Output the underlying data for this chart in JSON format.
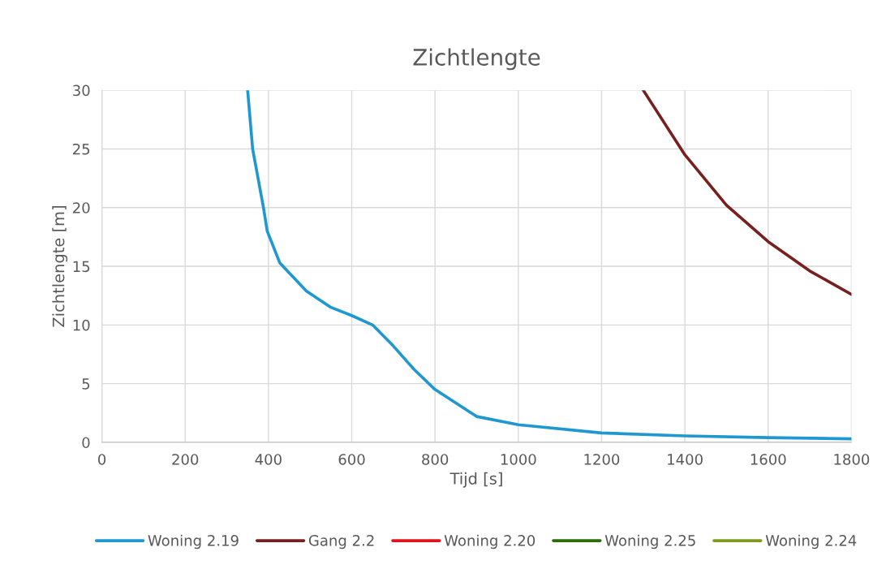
{
  "chart_data": {
    "type": "line",
    "title": "Zichtlengte",
    "xlabel": "Tijd [s]",
    "ylabel": "Zichtlengte [m]",
    "xlim": [
      0,
      1800
    ],
    "xticks": [
      0,
      200,
      400,
      600,
      800,
      1000,
      1200,
      1400,
      1600,
      1800
    ],
    "ylim": [
      0,
      30
    ],
    "yticks": [
      0,
      5,
      10,
      15,
      20,
      25,
      30
    ],
    "grid": true,
    "legend": "bottom",
    "marker": "none",
    "line_style": "solid",
    "series": [
      {
        "name": "Woning 2.19",
        "color": "#1f97d0",
        "x": [
          350,
          362,
          388,
          397,
          427,
          456,
          491,
          550,
          600,
          650,
          700,
          750,
          800,
          900,
          1000,
          1200,
          1400,
          1600,
          1800
        ],
        "values": [
          30,
          25,
          20,
          18,
          15.3,
          14.2,
          12.9,
          11.5,
          10.8,
          10,
          8.2,
          6.2,
          4.5,
          2.2,
          1.5,
          0.8,
          0.55,
          0.4,
          0.3
        ]
      },
      {
        "name": "Gang 2.2",
        "color": "#782020",
        "x": [
          1300,
          1400,
          1500,
          1600,
          1700,
          1800
        ],
        "values": [
          30,
          24.5,
          20.2,
          17.1,
          14.6,
          12.6
        ]
      },
      {
        "name": "Woning 2.20",
        "color": "#e0141e"
      },
      {
        "name": "Woning 2.25",
        "color": "#2e6b0f"
      },
      {
        "name": "Woning 2.24",
        "color": "#7f9a1e"
      }
    ]
  }
}
